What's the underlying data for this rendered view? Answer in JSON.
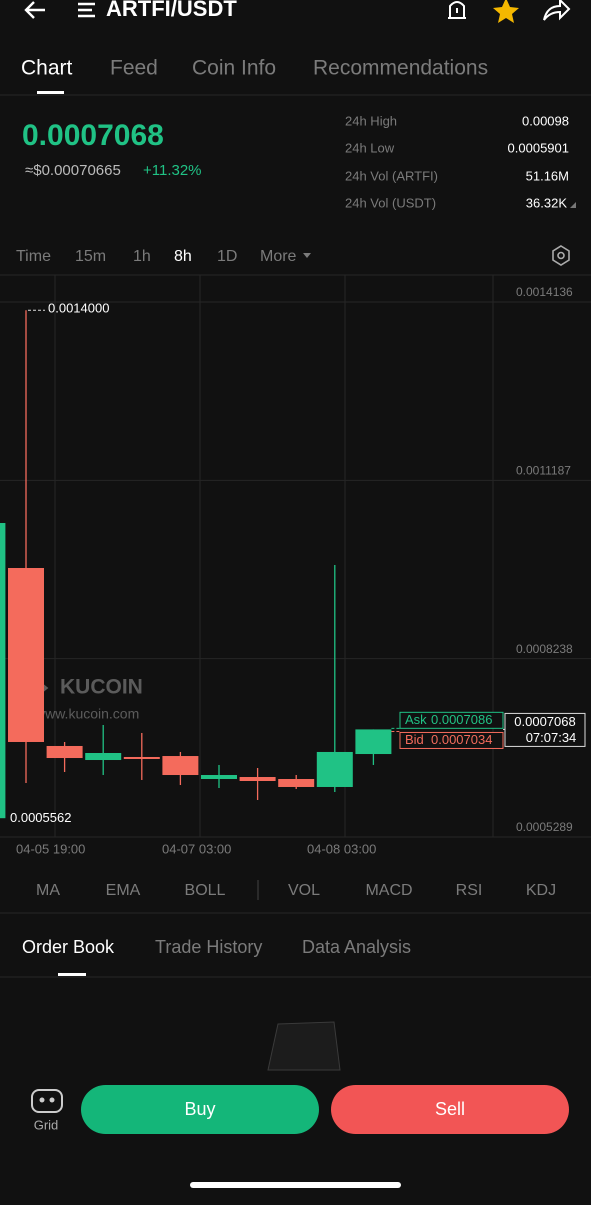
{
  "header": {
    "title": "ARTFI/USDT"
  },
  "tabs": [
    "Chart",
    "Feed",
    "Coin Info",
    "Recommendations"
  ],
  "price": {
    "last": "0.0007068",
    "usd": "≈$0.00070665",
    "change": "+11.32%"
  },
  "stats": [
    {
      "label": "24h High",
      "value": "0.00098"
    },
    {
      "label": "24h Low",
      "value": "0.0005901"
    },
    {
      "label": "24h Vol (ARTFI)",
      "value": "51.16M"
    },
    {
      "label": "24h Vol (USDT)",
      "value": "36.32K"
    }
  ],
  "intervals": [
    "Time",
    "15m",
    "1h",
    "8h",
    "1D",
    "More"
  ],
  "chart_data": {
    "type": "candlestick",
    "x": [
      null,
      null,
      null,
      null,
      null,
      null,
      null,
      null,
      null,
      null,
      null
    ],
    "open": [
      0.00056,
      0.0009737,
      0.0006794,
      0.0006562,
      0.0006612,
      0.0006628,
      0.0006248,
      0.0006281,
      0.0006248,
      0.0006116,
      0.0006661
    ],
    "high": [
      0.0010481,
      0.0014,
      0.000686,
      0.0007141,
      0.0007009,
      0.0006695,
      0.000648,
      0.000643,
      0.0006314,
      0.0009787,
      0.0007068
    ],
    "low": [
      0.0005562,
      0.0006182,
      0.0006364,
      0.0006314,
      0.0006232,
      0.0006149,
      0.0006099,
      0.0005901,
      0.0006083,
      0.0006033,
      0.000648
    ],
    "close": [
      0.0010481,
      0.000686,
      0.0006595,
      0.0006678,
      0.0006579,
      0.0006314,
      0.0006314,
      0.0006215,
      0.0006116,
      0.0006695,
      0.0007068
    ],
    "up_color": "#20c285",
    "down_color": "#f46b5c",
    "ylim": [
      0.0005289,
      0.0014582
    ],
    "yticks": [
      0.0005289,
      0.0008238,
      0.0011187,
      0.0014136
    ],
    "x_labels": [
      "04-05 19:00",
      "04-07 03:00",
      "04-08 03:00"
    ],
    "high_marker": {
      "value": 0.0014,
      "label": "0.0014000"
    },
    "low_marker": 0.0005562,
    "ask": {
      "label": "Ask",
      "value": 0.0007086
    },
    "bid": {
      "label": "Bid",
      "value": 0.0007034
    },
    "last": 0.0007068,
    "countdown": "07:07:34",
    "watermark": [
      "KUCOIN",
      "www.kucoin.com"
    ]
  },
  "indicators": [
    "MA",
    "EMA",
    "BOLL",
    "VOL",
    "MACD",
    "RSI",
    "KDJ"
  ],
  "bottom_tabs": [
    "Order Book",
    "Trade History",
    "Data Analysis"
  ],
  "actions": {
    "grid": "Grid",
    "buy": "Buy",
    "sell": "Sell"
  }
}
